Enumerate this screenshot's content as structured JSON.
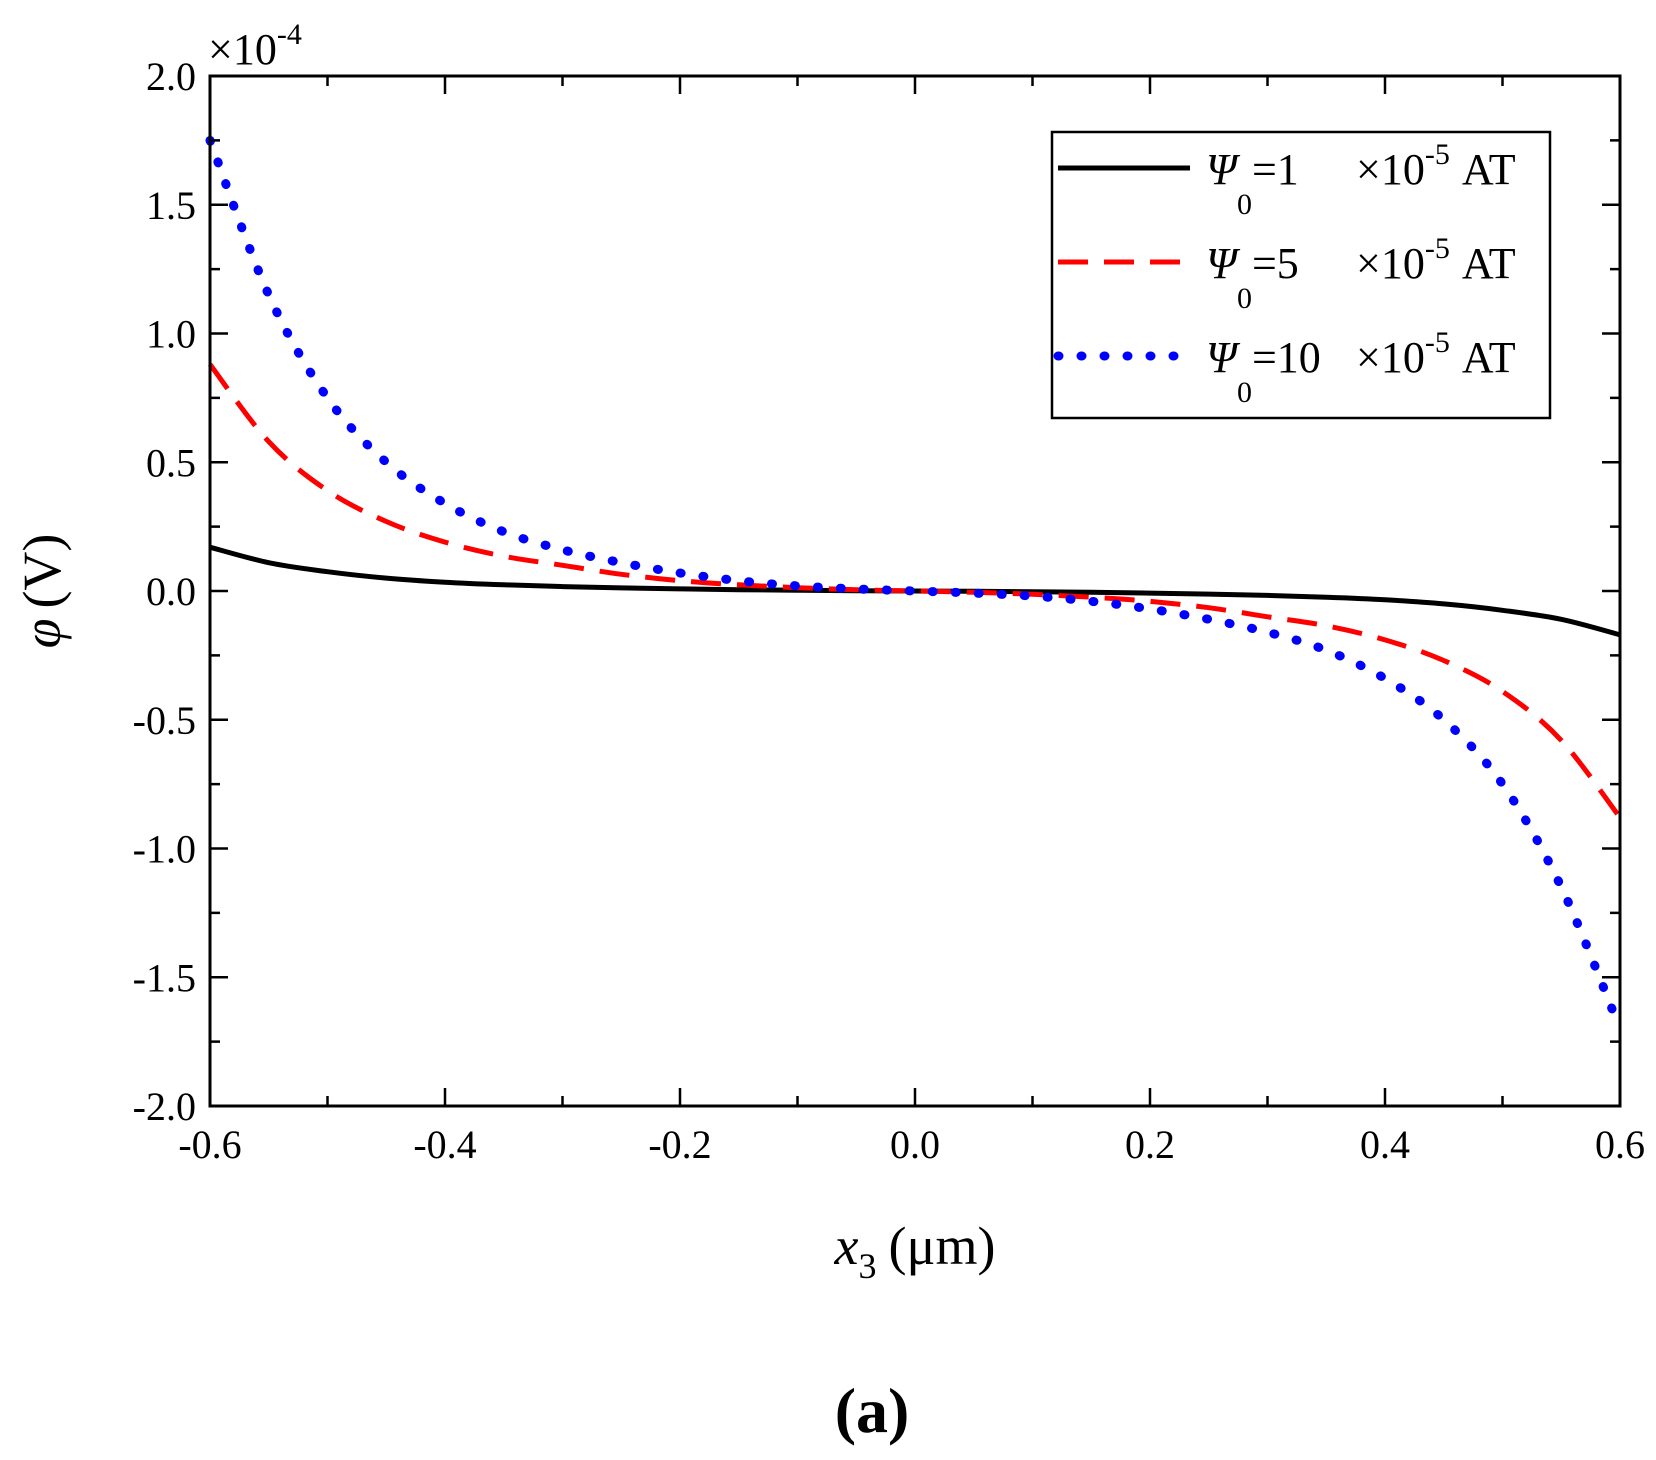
{
  "chart_data": {
    "type": "line",
    "panel_label": "(a)",
    "xlabel": {
      "symbol": "x",
      "subscript": "3",
      "unit": "(μm)"
    },
    "ylabel": {
      "symbol": "φ",
      "unit": "(V)"
    },
    "y_multiplier": {
      "base": "×10",
      "exponent": "-4"
    },
    "xlim": [
      -0.6,
      0.6
    ],
    "ylim": [
      -2.0,
      2.0
    ],
    "x_ticks": [
      -0.6,
      -0.4,
      -0.2,
      0.0,
      0.2,
      0.4,
      0.6
    ],
    "x_tick_labels": [
      "-0.6",
      "-0.4",
      "-0.2",
      "0.0",
      "0.2",
      "0.4",
      "0.6"
    ],
    "y_ticks": [
      -2.0,
      -1.5,
      -1.0,
      -0.5,
      0.0,
      0.5,
      1.0,
      1.5,
      2.0
    ],
    "y_tick_labels": [
      "-2.0",
      "-1.5",
      "-1.0",
      "-0.5",
      "0.0",
      "0.5",
      "1.0",
      "1.5",
      "2.0"
    ],
    "grid": false,
    "legend_position": "top-right",
    "x": [
      -0.6,
      -0.55,
      -0.5,
      -0.45,
      -0.4,
      -0.35,
      -0.3,
      -0.25,
      -0.2,
      -0.15,
      -0.1,
      -0.05,
      0.0,
      0.05,
      0.1,
      0.15,
      0.2,
      0.25,
      0.3,
      0.35,
      0.4,
      0.45,
      0.5,
      0.55,
      0.6
    ],
    "series": [
      {
        "name": "Ψ0=1 ×10-5 AT",
        "legend": {
          "symbol": "Ψ",
          "subscript": "0",
          "value": "=1",
          "multiplier": "×10",
          "exponent": "-5",
          "unit": "AT"
        },
        "color": "#000000",
        "style": "solid",
        "values": [
          0.17,
          0.11,
          0.075,
          0.05,
          0.034,
          0.024,
          0.017,
          0.012,
          0.008,
          0.005,
          0.003,
          0.001,
          0.0,
          -0.001,
          -0.003,
          -0.005,
          -0.008,
          -0.012,
          -0.017,
          -0.024,
          -0.034,
          -0.05,
          -0.075,
          -0.11,
          -0.17
        ]
      },
      {
        "name": "Ψ0=5 ×10-5 AT",
        "legend": {
          "symbol": "Ψ",
          "subscript": "0",
          "value": "=5",
          "multiplier": "×10",
          "exponent": "-5",
          "unit": "AT"
        },
        "color": "#ff0000",
        "style": "dashed",
        "values": [
          0.88,
          0.58,
          0.39,
          0.27,
          0.19,
          0.135,
          0.1,
          0.065,
          0.04,
          0.024,
          0.013,
          0.005,
          0.0,
          -0.005,
          -0.013,
          -0.024,
          -0.04,
          -0.065,
          -0.1,
          -0.135,
          -0.19,
          -0.27,
          -0.39,
          -0.58,
          -0.88
        ]
      },
      {
        "name": "Ψ0=10 ×10-5 AT",
        "legend": {
          "symbol": "Ψ",
          "subscript": "0",
          "value": "=10",
          "multiplier": "×10",
          "exponent": "-5",
          "unit": "AT"
        },
        "color": "#0000ff",
        "style": "dotted",
        "values": [
          1.75,
          1.15,
          0.75,
          0.5,
          0.34,
          0.23,
          0.16,
          0.11,
          0.07,
          0.04,
          0.02,
          0.008,
          0.0,
          -0.008,
          -0.02,
          -0.04,
          -0.07,
          -0.11,
          -0.16,
          -0.23,
          -0.34,
          -0.5,
          -0.75,
          -1.15,
          -1.7
        ]
      }
    ]
  }
}
